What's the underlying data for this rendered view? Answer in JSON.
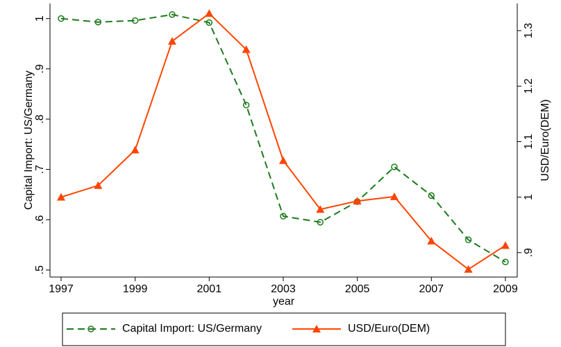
{
  "chart_data": {
    "type": "line",
    "x": [
      1997,
      1998,
      1999,
      2000,
      2001,
      2002,
      2003,
      2004,
      2005,
      2006,
      2007,
      2008,
      2009
    ],
    "xlabel": "year",
    "ylabel": "Capital Import: US/Germany",
    "y2label": "USD/Euro(DEM)",
    "xlim": [
      1996.7,
      2009.32
    ],
    "xticks": [
      1997,
      1999,
      2001,
      2003,
      2005,
      2007,
      2009
    ],
    "ylim": [
      0.486,
      1.03
    ],
    "yticks": [
      {
        "value": 0.5,
        "label": ".5"
      },
      {
        "value": 0.6,
        "label": ".6"
      },
      {
        "value": 0.7,
        "label": ".7"
      },
      {
        "value": 0.8,
        "label": ".8"
      },
      {
        "value": 0.9,
        "label": ".9"
      },
      1
    ],
    "y2lim": [
      0.856,
      1.349
    ],
    "y2ticks": [
      {
        "value": 0.9,
        "label": ".9"
      },
      1,
      1.1,
      1.2,
      1.3
    ],
    "series": [
      {
        "name": "Capital Import: US/Germany",
        "color": "#1a7a1a",
        "marker": "circle",
        "dash": true,
        "values": [
          1.0,
          0.993,
          0.996,
          1.008,
          0.992,
          0.828,
          0.607,
          0.595,
          0.636,
          0.705,
          0.648,
          0.56,
          0.516
        ]
      },
      {
        "name": "USD/Euro(DEM)",
        "color": "#ff4500",
        "marker": "triangle",
        "dash": false,
        "axis": "y2",
        "values": [
          1.0,
          1.021,
          1.085,
          1.281,
          1.331,
          1.266,
          1.066,
          0.978,
          0.993,
          1.001,
          0.921,
          0.87,
          0.913
        ]
      }
    ]
  }
}
